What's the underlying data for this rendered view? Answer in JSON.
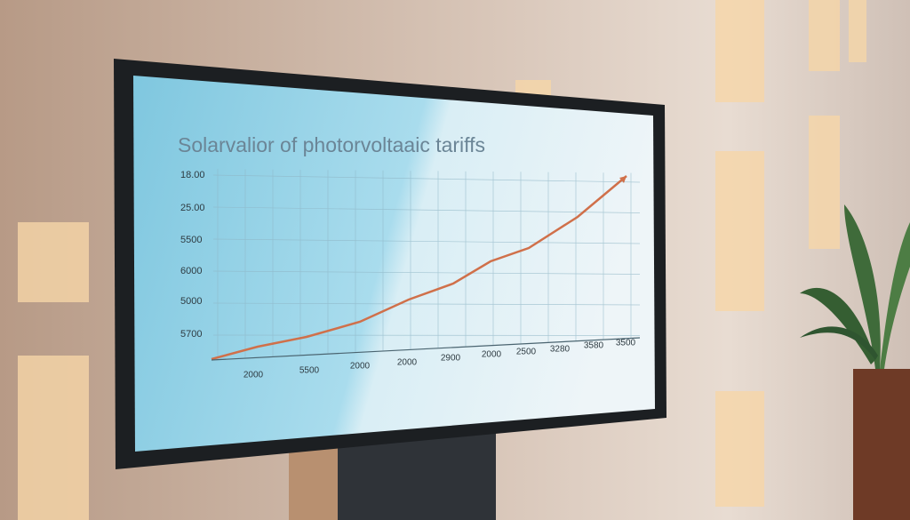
{
  "screen": {
    "title": "Solarvalior of photorvoltaaic tariffs",
    "y_axis_labels": [
      "18.00",
      "25.00",
      "5500",
      "6000",
      "5000",
      "5700"
    ],
    "x_axis_labels": [
      "2000",
      "5500",
      "2000",
      "2000",
      "2900",
      "2000",
      "2500",
      "3280",
      "3580",
      "3500"
    ]
  }
}
